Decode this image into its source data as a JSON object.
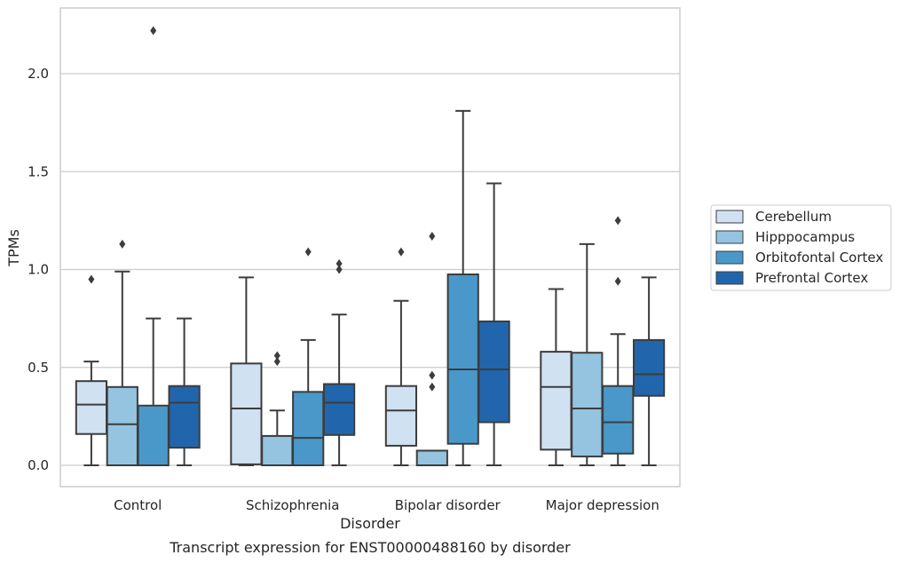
{
  "chart_data": {
    "type": "box",
    "caption": "Transcript expression for ENST00000488160 by disorder",
    "xlabel": "Disorder",
    "ylabel": "TPMs",
    "ylim": [
      -0.11,
      2.35
    ],
    "yticks": [
      0.0,
      0.5,
      1.0,
      1.5,
      2.0
    ],
    "ytick_labels": [
      "0.0",
      "0.5",
      "1.0",
      "1.5",
      "2.0"
    ],
    "grid": "horizontal",
    "legend_position": "right",
    "categories": [
      "Control",
      "Schizophrenia",
      "Bipolar disorder",
      "Major depression"
    ],
    "series": [
      {
        "name": "Cerebellum",
        "color": "#d0e1f2",
        "boxes": [
          {
            "whislo": 0.0,
            "q1": 0.16,
            "med": 0.31,
            "q3": 0.43,
            "whishi": 0.53,
            "fliers": [
              0.95
            ]
          },
          {
            "whislo": 0.0,
            "q1": 0.005,
            "med": 0.29,
            "q3": 0.52,
            "whishi": 0.96,
            "fliers": []
          },
          {
            "whislo": 0.0,
            "q1": 0.1,
            "med": 0.28,
            "q3": 0.405,
            "whishi": 0.84,
            "fliers": [
              1.09
            ]
          },
          {
            "whislo": 0.0,
            "q1": 0.08,
            "med": 0.4,
            "q3": 0.58,
            "whishi": 0.9,
            "fliers": []
          }
        ]
      },
      {
        "name": "Hipppocampus",
        "color": "#94c4df",
        "boxes": [
          {
            "whislo": 0.0,
            "q1": 0.0,
            "med": 0.21,
            "q3": 0.4,
            "whishi": 0.99,
            "fliers": [
              1.13
            ]
          },
          {
            "whislo": 0.0,
            "q1": 0.0,
            "med": 0.0,
            "q3": 0.15,
            "whishi": 0.28,
            "fliers": [
              0.53,
              0.56
            ]
          },
          {
            "whislo": 0.0,
            "q1": 0.0,
            "med": 0.075,
            "q3": 0.075,
            "whishi": 0.075,
            "fliers": [
              0.4,
              0.46,
              1.17
            ]
          },
          {
            "whislo": 0.0,
            "q1": 0.045,
            "med": 0.29,
            "q3": 0.575,
            "whishi": 1.13,
            "fliers": []
          }
        ]
      },
      {
        "name": "Orbitofontal Cortex",
        "color": "#4a98c9",
        "boxes": [
          {
            "whislo": 0.0,
            "q1": 0.0,
            "med": 0.0,
            "q3": 0.305,
            "whishi": 0.75,
            "fliers": [
              2.22
            ]
          },
          {
            "whislo": 0.0,
            "q1": 0.0,
            "med": 0.14,
            "q3": 0.375,
            "whishi": 0.64,
            "fliers": [
              1.09
            ]
          },
          {
            "whislo": 0.0,
            "q1": 0.11,
            "med": 0.49,
            "q3": 0.975,
            "whishi": 1.81,
            "fliers": []
          },
          {
            "whislo": 0.0,
            "q1": 0.06,
            "med": 0.22,
            "q3": 0.405,
            "whishi": 0.67,
            "fliers": [
              0.94,
              1.25
            ]
          }
        ]
      },
      {
        "name": "Prefrontal Cortex",
        "color": "#2166ac",
        "boxes": [
          {
            "whislo": 0.0,
            "q1": 0.09,
            "med": 0.32,
            "q3": 0.405,
            "whishi": 0.75,
            "fliers": []
          },
          {
            "whislo": 0.0,
            "q1": 0.155,
            "med": 0.32,
            "q3": 0.415,
            "whishi": 0.77,
            "fliers": [
              1.0,
              1.03
            ]
          },
          {
            "whislo": 0.0,
            "q1": 0.22,
            "med": 0.49,
            "q3": 0.735,
            "whishi": 1.44,
            "fliers": []
          },
          {
            "whislo": 0.0,
            "q1": 0.355,
            "med": 0.465,
            "q3": 0.64,
            "whishi": 0.96,
            "fliers": []
          }
        ]
      }
    ]
  }
}
